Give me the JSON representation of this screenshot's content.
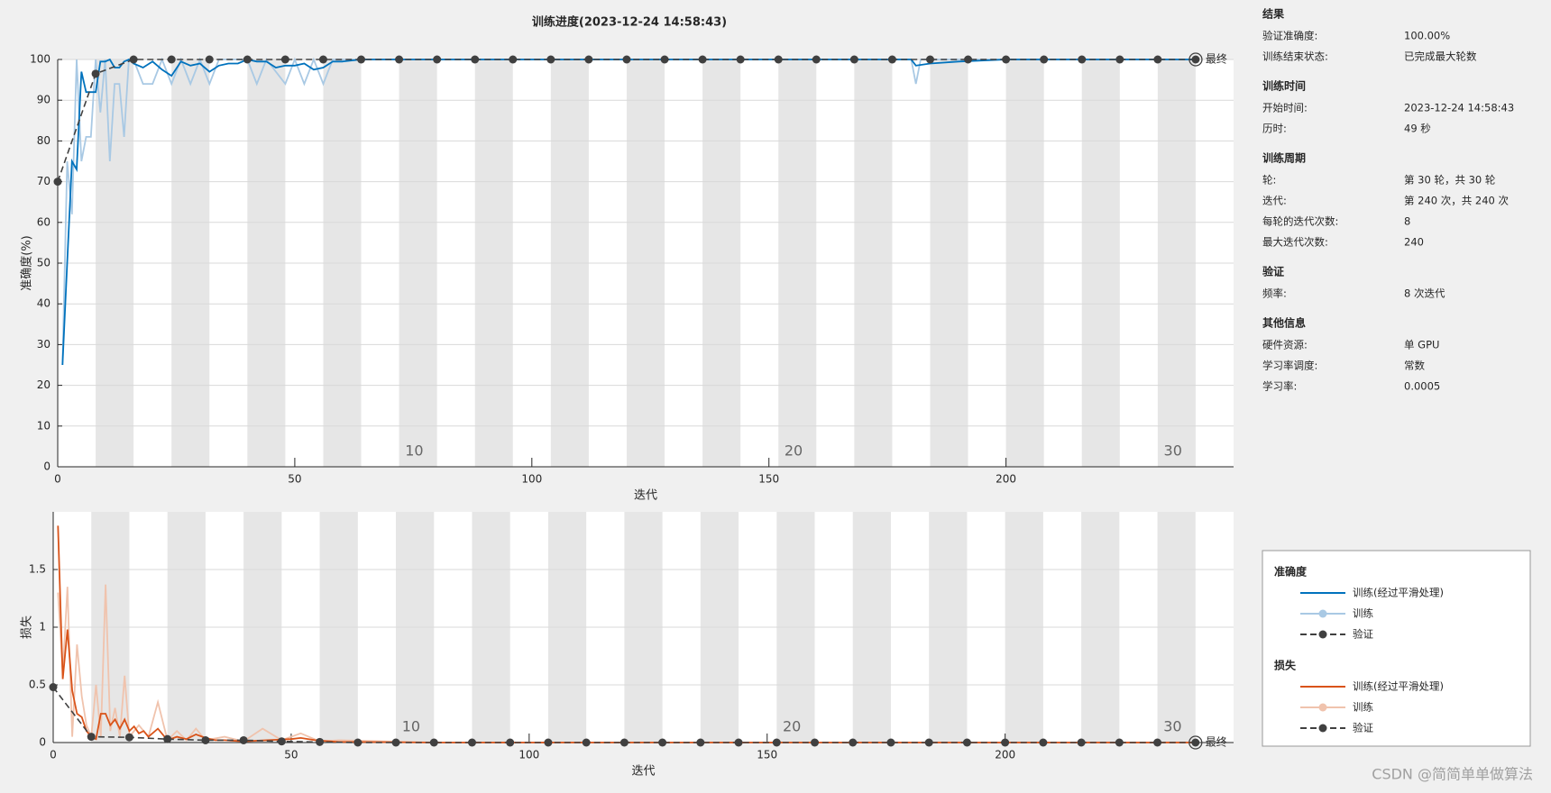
{
  "title": "训练进度(2023-12-24 14:58:43)",
  "chart_data": [
    {
      "type": "line",
      "y_label": "准确度(%)",
      "x_label": "迭代",
      "legend_title": "准确度",
      "final_label": "最终",
      "xlim": [
        0,
        248
      ],
      "xticks": [
        0,
        50,
        100,
        150,
        200
      ],
      "ylim": [
        0,
        100
      ],
      "yticks": [
        0,
        10,
        20,
        30,
        40,
        50,
        60,
        70,
        80,
        90,
        100
      ],
      "grid": true,
      "epochs": 30,
      "epoch_length": 8,
      "epoch_ticks": [
        10,
        20,
        30
      ],
      "series": [
        {
          "name": "训练",
          "color": "#a9c9e4",
          "line_style": "solid",
          "markers": false,
          "x": [
            1,
            2,
            3,
            4,
            5,
            6,
            7,
            8,
            9,
            10,
            11,
            12,
            13,
            14,
            15,
            16,
            18,
            20,
            22,
            24,
            26,
            28,
            30,
            32,
            34,
            36,
            40,
            42,
            44,
            48,
            50,
            52,
            54,
            56,
            58,
            60,
            64,
            120,
            180,
            181,
            182,
            240
          ],
          "values": [
            25,
            75,
            62,
            100,
            75,
            81,
            81,
            100,
            87,
            100,
            75,
            94,
            94,
            81,
            100,
            100,
            94,
            94,
            100,
            94,
            100,
            94,
            100,
            94,
            100,
            100,
            100,
            94,
            100,
            94,
            100,
            94,
            100,
            94,
            100,
            100,
            100,
            100,
            100,
            94,
            100,
            100
          ]
        },
        {
          "name": "训练(经过平滑处理)",
          "color": "#0072bd",
          "line_style": "solid",
          "markers": false,
          "x": [
            1,
            2,
            3,
            4,
            5,
            6,
            7,
            8,
            9,
            10,
            11,
            12,
            13,
            14,
            15,
            16,
            18,
            20,
            22,
            24,
            26,
            28,
            30,
            32,
            34,
            36,
            38,
            40,
            42,
            44,
            46,
            48,
            50,
            52,
            54,
            56,
            58,
            60,
            64,
            80,
            120,
            160,
            180,
            181,
            184,
            190,
            200,
            240
          ],
          "values": [
            25,
            50,
            75,
            73,
            97,
            92,
            92,
            92,
            99.5,
            99.5,
            100,
            98,
            98,
            99.5,
            100,
            99,
            98,
            99.5,
            97.5,
            96,
            99.5,
            98.5,
            99,
            97,
            98.5,
            99,
            99,
            100,
            99.5,
            99.5,
            98,
            98.5,
            98.5,
            99,
            97.5,
            98,
            99.5,
            99.5,
            100,
            100,
            100,
            100,
            100,
            98.5,
            99,
            99.5,
            100,
            100
          ]
        },
        {
          "name": "验证",
          "color": "#404040",
          "line_style": "dashed",
          "markers": true,
          "x": [
            0,
            8,
            16,
            24,
            32,
            40,
            48,
            56,
            64,
            72,
            80,
            88,
            96,
            104,
            112,
            120,
            128,
            136,
            144,
            152,
            160,
            168,
            176,
            184,
            192,
            200,
            208,
            216,
            224,
            232,
            240
          ],
          "values": [
            70,
            96.5,
            100,
            100,
            100,
            100,
            100,
            100,
            100,
            100,
            100,
            100,
            100,
            100,
            100,
            100,
            100,
            100,
            100,
            100,
            100,
            100,
            100,
            100,
            100,
            100,
            100,
            100,
            100,
            100,
            100
          ]
        }
      ]
    },
    {
      "type": "line",
      "y_label": "损失",
      "x_label": "迭代",
      "legend_title": "损失",
      "final_label": "最终",
      "xlim": [
        0,
        248
      ],
      "xticks": [
        0,
        50,
        100,
        150,
        200
      ],
      "ylim": [
        0,
        2
      ],
      "yticks": [
        0,
        0.5,
        1,
        1.5
      ],
      "grid": true,
      "epochs": 30,
      "epoch_length": 8,
      "epoch_ticks": [
        10,
        20,
        30
      ],
      "series": [
        {
          "name": "训练",
          "color": "#f0c3ad",
          "line_style": "solid",
          "markers": false,
          "x": [
            1,
            2,
            3,
            4,
            5,
            6,
            7,
            8,
            9,
            10,
            11,
            12,
            13,
            14,
            15,
            16,
            18,
            20,
            22,
            24,
            26,
            28,
            30,
            32,
            36,
            40,
            44,
            48,
            52,
            56,
            60,
            80,
            240
          ],
          "values": [
            1.3,
            0.6,
            1.35,
            0.05,
            0.85,
            0.4,
            0.15,
            0.05,
            0.5,
            0.05,
            1.37,
            0.1,
            0.3,
            0.05,
            0.58,
            0.05,
            0.15,
            0.05,
            0.35,
            0.02,
            0.1,
            0.02,
            0.12,
            0.02,
            0.05,
            0.01,
            0.12,
            0.02,
            0.08,
            0.01,
            0.02,
            0,
            0
          ]
        },
        {
          "name": "训练(经过平滑处理)",
          "color": "#d95319",
          "line_style": "solid",
          "markers": false,
          "x": [
            1,
            2,
            3,
            4,
            5,
            6,
            7,
            8,
            9,
            10,
            11,
            12,
            13,
            14,
            15,
            16,
            17,
            18,
            19,
            20,
            22,
            24,
            26,
            28,
            30,
            32,
            34,
            36,
            40,
            45,
            50,
            52,
            55,
            60,
            64,
            80,
            240
          ],
          "values": [
            1.88,
            0.55,
            0.98,
            0.45,
            0.25,
            0.22,
            0.1,
            0.05,
            0.03,
            0.25,
            0.25,
            0.15,
            0.2,
            0.12,
            0.2,
            0.1,
            0.14,
            0.08,
            0.1,
            0.05,
            0.12,
            0.02,
            0.05,
            0.03,
            0.07,
            0.04,
            0.02,
            0.02,
            0.01,
            0.02,
            0.03,
            0.04,
            0.02,
            0.005,
            0.005,
            0,
            0
          ]
        },
        {
          "name": "验证",
          "color": "#404040",
          "line_style": "dashed",
          "markers": true,
          "x": [
            0,
            8,
            16,
            24,
            32,
            40,
            48,
            56,
            64,
            72,
            80,
            88,
            96,
            104,
            112,
            120,
            128,
            136,
            144,
            152,
            160,
            168,
            176,
            184,
            192,
            200,
            208,
            216,
            224,
            232,
            240
          ],
          "values": [
            0.48,
            0.05,
            0.045,
            0.03,
            0.02,
            0.02,
            0.01,
            0.005,
            0,
            0,
            0,
            0,
            0,
            0,
            0,
            0,
            0,
            0,
            0,
            0,
            0,
            0,
            0,
            0,
            0,
            0,
            0,
            0,
            0,
            0,
            0
          ]
        }
      ]
    }
  ],
  "info": {
    "sections": [
      {
        "title": "结果",
        "rows": [
          [
            "验证准确度:",
            "100.00%"
          ],
          [
            "训练结束状态:",
            "已完成最大轮数"
          ]
        ]
      },
      {
        "title": "训练时间",
        "rows": [
          [
            "开始时间:",
            "2023-12-24 14:58:43"
          ],
          [
            "历时:",
            "49 秒"
          ]
        ]
      },
      {
        "title": "训练周期",
        "rows": [
          [
            "轮:",
            "第 30 轮，共 30 轮"
          ],
          [
            "迭代:",
            "第 240 次，共 240 次"
          ],
          [
            "每轮的迭代次数:",
            "8"
          ],
          [
            "最大迭代次数:",
            "240"
          ]
        ]
      },
      {
        "title": "验证",
        "rows": [
          [
            "频率:",
            "8 次迭代"
          ]
        ]
      },
      {
        "title": "其他信息",
        "rows": [
          [
            "硬件资源:",
            "单 GPU"
          ],
          [
            "学习率调度:",
            "常数"
          ],
          [
            "学习率:",
            "0.0005"
          ]
        ]
      }
    ]
  },
  "watermark": "CSDN @简简单单做算法"
}
